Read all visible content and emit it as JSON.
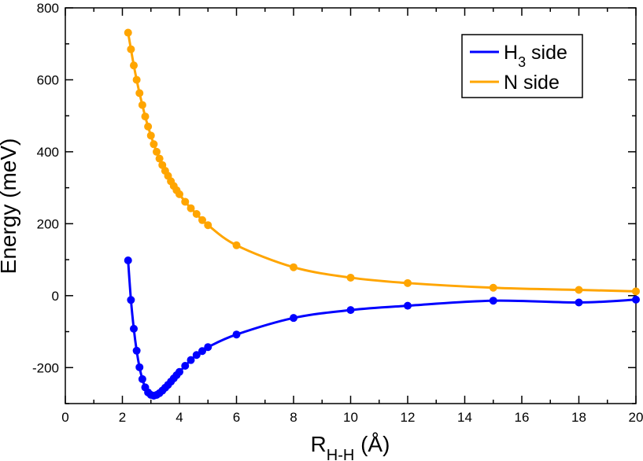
{
  "chart_data": {
    "type": "line",
    "title": "",
    "xlabel": {
      "main": "R",
      "sub": "H-H",
      "suffix": " (Å)"
    },
    "ylabel": "Energy (meV)",
    "xlim": [
      0,
      20
    ],
    "ylim": [
      -300,
      800
    ],
    "x_ticks": [
      0,
      2,
      4,
      6,
      8,
      10,
      12,
      14,
      16,
      18,
      20
    ],
    "y_ticks": [
      -200,
      0,
      200,
      400,
      600,
      800
    ],
    "grid": false,
    "legend_position": "top-right",
    "series": [
      {
        "name": "H3 side",
        "legend": {
          "main": "H",
          "sub": "3",
          "suffix": " side"
        },
        "color": "#0000ff",
        "x": [
          2.2,
          2.3,
          2.4,
          2.5,
          2.6,
          2.7,
          2.8,
          2.9,
          3.0,
          3.1,
          3.2,
          3.3,
          3.4,
          3.5,
          3.6,
          3.7,
          3.8,
          3.9,
          4.0,
          4.2,
          4.4,
          4.6,
          4.8,
          5.0,
          6.0,
          8.0,
          10.0,
          12.0,
          15.0,
          18.0,
          20.0
        ],
        "y": [
          98,
          -12,
          -92,
          -153,
          -199,
          -232,
          -255,
          -269,
          -276,
          -278,
          -276,
          -271,
          -264,
          -256,
          -248,
          -239,
          -230,
          -221,
          -212,
          -195,
          -179,
          -165,
          -154,
          -143,
          -108,
          -62,
          -40,
          -28,
          -14,
          -19,
          -11
        ]
      },
      {
        "name": "N side",
        "color": "#ffa500",
        "x": [
          2.2,
          2.3,
          2.4,
          2.5,
          2.6,
          2.7,
          2.8,
          2.9,
          3.0,
          3.1,
          3.2,
          3.3,
          3.4,
          3.5,
          3.6,
          3.7,
          3.8,
          3.9,
          4.0,
          4.2,
          4.4,
          4.6,
          4.8,
          5.0,
          6.0,
          8.0,
          10.0,
          12.0,
          15.0,
          18.0,
          20.0
        ],
        "y": [
          731,
          685,
          640,
          600,
          563,
          530,
          498,
          470,
          445,
          421,
          400,
          381,
          363,
          347,
          333,
          318,
          305,
          293,
          282,
          261,
          243,
          227,
          210,
          196,
          140,
          79,
          50,
          35,
          22,
          16,
          12
        ]
      }
    ]
  }
}
